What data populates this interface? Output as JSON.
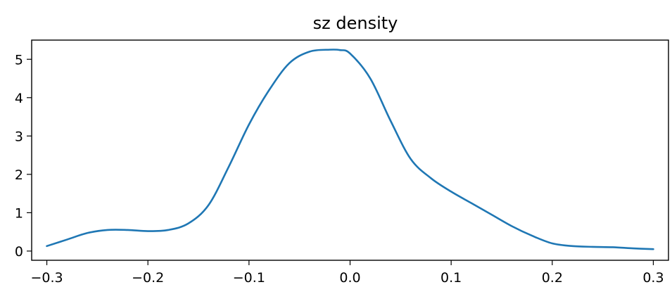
{
  "chart_data": {
    "type": "line",
    "title": "sz density",
    "xlabel": "",
    "ylabel": "",
    "xlim": [
      -0.315,
      0.315
    ],
    "ylim": [
      -0.24,
      5.5
    ],
    "x_ticks": [
      -0.3,
      -0.2,
      -0.1,
      0.0,
      0.1,
      0.2,
      0.3
    ],
    "x_tick_labels": [
      "−0.3",
      "−0.2",
      "−0.1",
      "0.0",
      "0.1",
      "0.2",
      "0.3"
    ],
    "y_ticks": [
      0,
      1,
      2,
      3,
      4,
      5
    ],
    "y_tick_labels": [
      "0",
      "1",
      "2",
      "3",
      "4",
      "5"
    ],
    "grid": false,
    "series": [
      {
        "color": "#1f77b4",
        "x": [
          -0.3,
          -0.28,
          -0.26,
          -0.24,
          -0.22,
          -0.2,
          -0.18,
          -0.16,
          -0.14,
          -0.12,
          -0.1,
          -0.08,
          -0.06,
          -0.04,
          -0.02,
          -0.01,
          0.0,
          0.02,
          0.04,
          0.06,
          0.08,
          0.1,
          0.12,
          0.14,
          0.16,
          0.18,
          0.2,
          0.22,
          0.24,
          0.26,
          0.28,
          0.3
        ],
        "y": [
          0.13,
          0.3,
          0.47,
          0.55,
          0.55,
          0.52,
          0.55,
          0.72,
          1.2,
          2.2,
          3.3,
          4.2,
          4.9,
          5.2,
          5.25,
          5.24,
          5.15,
          4.5,
          3.4,
          2.4,
          1.9,
          1.55,
          1.25,
          0.95,
          0.65,
          0.4,
          0.2,
          0.13,
          0.11,
          0.1,
          0.07,
          0.05
        ]
      }
    ]
  }
}
